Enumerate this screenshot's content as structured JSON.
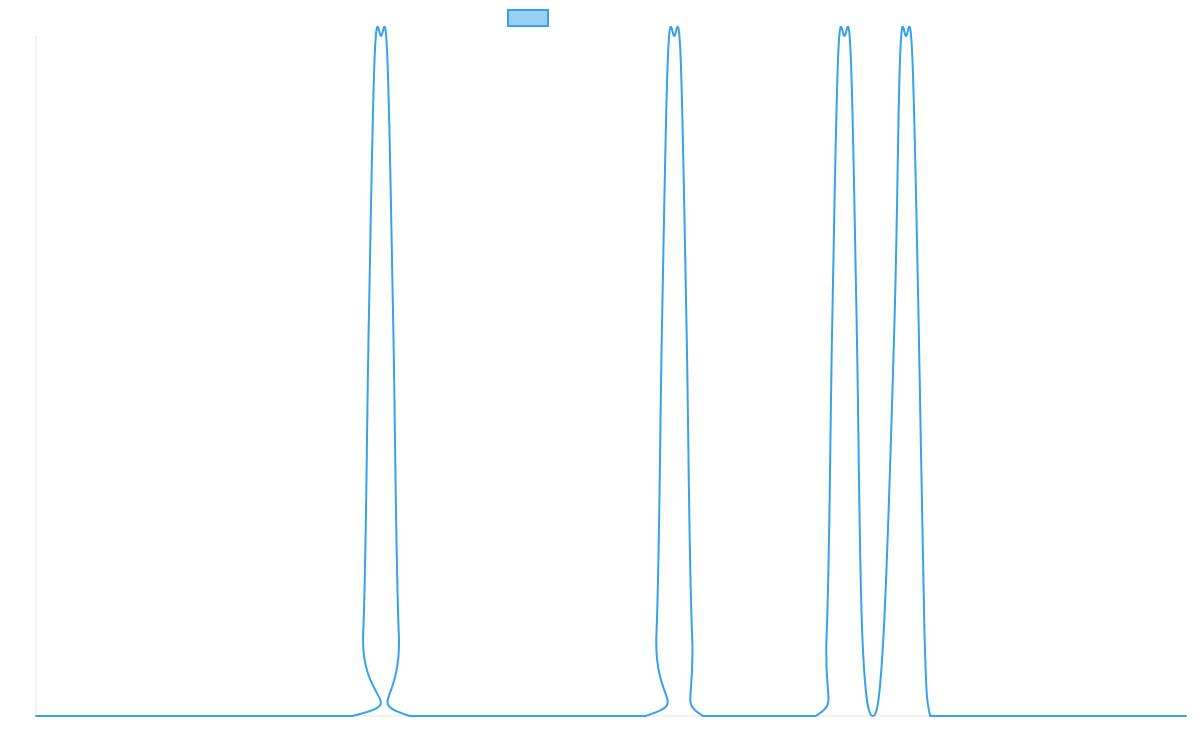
{
  "chart_data": {
    "type": "line",
    "title": "",
    "xlabel": "",
    "ylabel": "",
    "legend": {
      "placement": "top-center",
      "show_text": false
    },
    "grid": false,
    "xlim": [
      0,
      100
    ],
    "ylim": [
      0,
      1
    ],
    "series": [
      {
        "name": "",
        "color": "#36a2eb",
        "fill": "#9ad0f5",
        "x": [
          0,
          27.5,
          28.45,
          28.94,
          29.45,
          30.0,
          30.55,
          31.06,
          31.55,
          32.5,
          53.0,
          53.95,
          54.44,
          54.95,
          55.5,
          56.05,
          56.56,
          57.05,
          58.0,
          67.8,
          68.75,
          69.24,
          69.75,
          70.3,
          70.85,
          71.36,
          71.85,
          72.77,
          73.7,
          74.65,
          75.14,
          75.65,
          76.2,
          76.75,
          77.26,
          77.75,
          78.7,
          100
        ],
        "y": [
          0,
          0,
          0.12,
          0.58,
          0.97,
          1.0,
          0.97,
          0.58,
          0.12,
          0,
          0,
          0.12,
          0.58,
          0.97,
          1.0,
          0.97,
          0.58,
          0.12,
          0,
          0,
          0.12,
          0.58,
          0.97,
          1.0,
          0.97,
          0.58,
          0.12,
          0,
          0.12,
          0.58,
          0.97,
          1.0,
          0.97,
          0.58,
          0.12,
          0,
          0,
          0
        ]
      }
    ]
  }
}
